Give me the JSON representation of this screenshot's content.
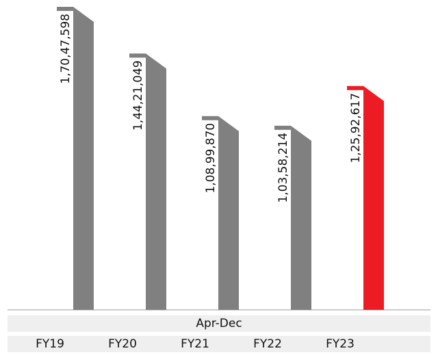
{
  "chart_data": {
    "type": "bar",
    "period_label": "Apr-Dec",
    "categories": [
      "FY19",
      "FY20",
      "FY21",
      "FY22",
      "FY23"
    ],
    "values": [
      17047598,
      14421049,
      10899870,
      10358214,
      12592617
    ],
    "value_labels": [
      "1,70,47,598",
      "1,44,21,049",
      "1,08,99,870",
      "1,03,58,214",
      "1,25,92,617"
    ],
    "highlight_index": 4,
    "colors": {
      "bar": "#808080",
      "bar_top": "#6f6f6f",
      "highlight": "#ed1c24",
      "highlight_top": "#c8141b",
      "band": "#efefef"
    },
    "ylim": [
      0,
      17047598
    ],
    "grid": false,
    "legend": "none"
  }
}
